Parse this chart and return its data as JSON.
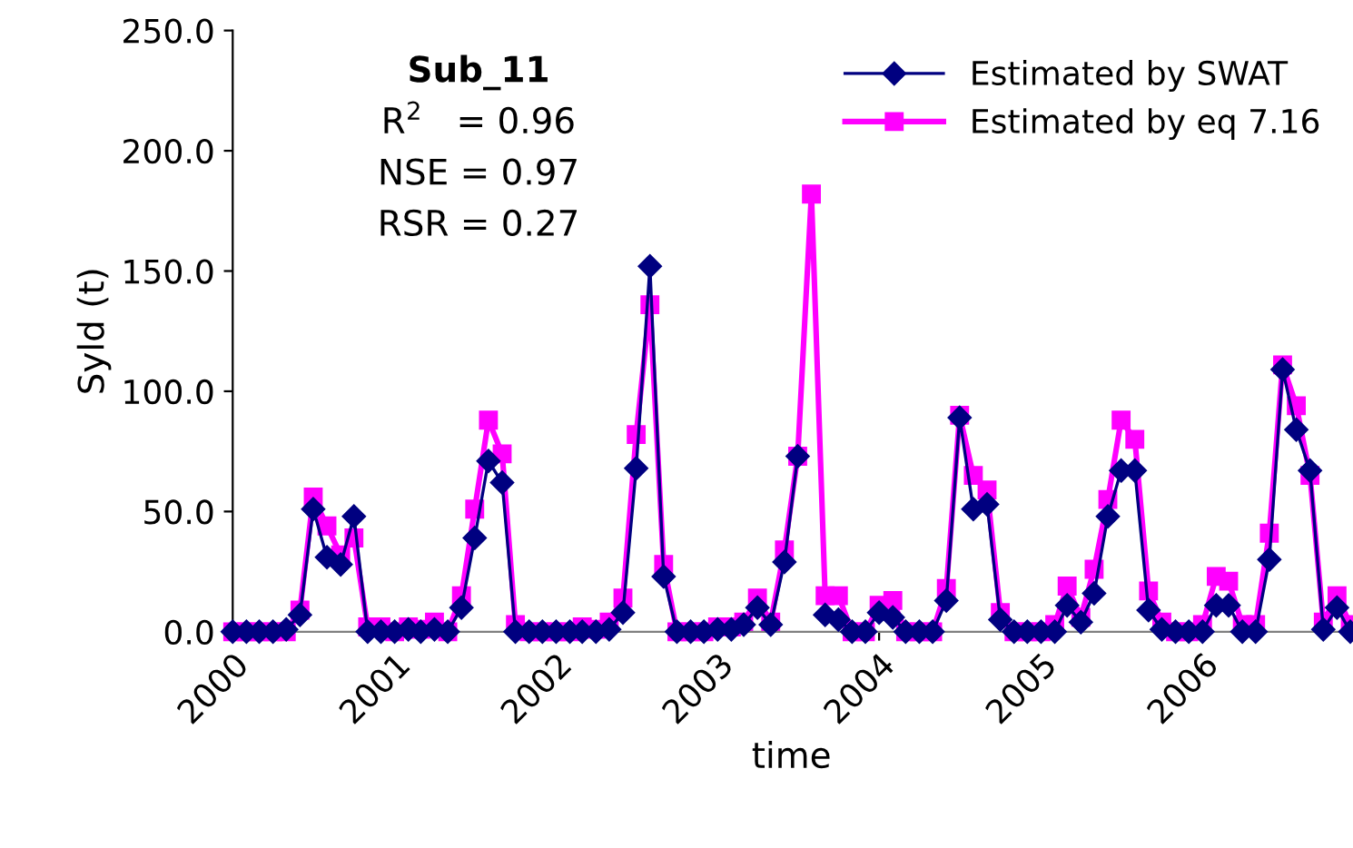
{
  "chart_data": {
    "type": "line",
    "xlabel": "time",
    "ylabel": "Syld (t)",
    "annotations": [
      "Sub_11",
      "R$^{2}$   = 0.96",
      "NSE = 0.97",
      "RSR = 0.27"
    ],
    "x": [
      "2000-01",
      "2000-02",
      "2000-03",
      "2000-04",
      "2000-05",
      "2000-06",
      "2000-07",
      "2000-08",
      "2000-09",
      "2000-10",
      "2000-11",
      "2000-12",
      "2001-01",
      "2001-02",
      "2001-03",
      "2001-04",
      "2001-05",
      "2001-06",
      "2001-07",
      "2001-08",
      "2001-09",
      "2001-10",
      "2001-11",
      "2001-12",
      "2002-01",
      "2002-02",
      "2002-03",
      "2002-04",
      "2002-05",
      "2002-06",
      "2002-07",
      "2002-08",
      "2002-09",
      "2002-10",
      "2002-11",
      "2002-12",
      "2003-01",
      "2003-02",
      "2003-03",
      "2003-04",
      "2003-05",
      "2003-06",
      "2003-07",
      "2003-08",
      "2003-09",
      "2003-10",
      "2003-11",
      "2003-12",
      "2004-01",
      "2004-02",
      "2004-03",
      "2004-04",
      "2004-05",
      "2004-06",
      "2004-07",
      "2004-08",
      "2004-09",
      "2004-10",
      "2004-11",
      "2004-12",
      "2005-01",
      "2005-02",
      "2005-03",
      "2005-04",
      "2005-05",
      "2005-06",
      "2005-07",
      "2005-08",
      "2005-09",
      "2005-10",
      "2005-11",
      "2005-12",
      "2006-01",
      "2006-02",
      "2006-03",
      "2006-04",
      "2006-05",
      "2006-06",
      "2006-07",
      "2006-08",
      "2006-09",
      "2006-10",
      "2006-11",
      "2006-12"
    ],
    "series": [
      {
        "name": "Estimated by SWAT",
        "color": "#000080",
        "marker": "diamond",
        "values": [
          0,
          0,
          0,
          0,
          1,
          7,
          51,
          31,
          28,
          48,
          0,
          0,
          0,
          1,
          0,
          1,
          0,
          10,
          39,
          71,
          62,
          0,
          0,
          0,
          0,
          0,
          0,
          0,
          1,
          8,
          68,
          152,
          23,
          0,
          0,
          0,
          1,
          1,
          3,
          10,
          3,
          29,
          73,
          null,
          7,
          5,
          0,
          0,
          8,
          6,
          0,
          0,
          0,
          13,
          89,
          51,
          53,
          5,
          0,
          0,
          0,
          0,
          11,
          4,
          16,
          48,
          67,
          67,
          9,
          1,
          0,
          0,
          0,
          11,
          11,
          0,
          0,
          30,
          109,
          84,
          67,
          1,
          10,
          0
        ]
      },
      {
        "name": "Estimated by eq 7.16",
        "color": "#ff00ff",
        "marker": "square",
        "values": [
          0,
          0,
          0,
          0,
          0,
          9,
          56,
          44,
          32,
          39,
          2,
          2,
          0,
          2,
          1,
          4,
          0,
          15,
          51,
          88,
          74,
          3,
          0,
          0,
          0,
          0,
          2,
          1,
          4,
          14,
          82,
          136,
          28,
          0,
          0,
          0,
          2,
          2,
          4,
          14,
          4,
          34,
          73,
          182,
          15,
          15,
          0,
          0,
          11,
          13,
          0,
          0,
          0,
          18,
          90,
          65,
          59,
          8,
          0,
          0,
          0,
          3,
          19,
          6,
          26,
          55,
          88,
          80,
          17,
          4,
          0,
          0,
          3,
          23,
          21,
          3,
          3,
          41,
          111,
          94,
          65,
          4,
          15,
          3
        ]
      }
    ],
    "xlim": [
      "2000-01",
      "2006-12"
    ],
    "xticks": [
      {
        "value": "2000",
        "label": "2000"
      },
      {
        "value": "2001",
        "label": "2001"
      },
      {
        "value": "2002",
        "label": "2002"
      },
      {
        "value": "2003",
        "label": "2003"
      },
      {
        "value": "2004",
        "label": "2004"
      },
      {
        "value": "2005",
        "label": "2005"
      },
      {
        "value": "2006",
        "label": "2006"
      }
    ],
    "ylim": [
      0,
      250
    ],
    "yticks": [
      {
        "value": 0,
        "label": "0.0"
      },
      {
        "value": 50,
        "label": "50.0"
      },
      {
        "value": 100,
        "label": "100.0"
      },
      {
        "value": 150,
        "label": "150.0"
      },
      {
        "value": 200,
        "label": "200.0"
      },
      {
        "value": 250,
        "label": "250.0"
      }
    ],
    "grid": false,
    "legend": "top right"
  }
}
